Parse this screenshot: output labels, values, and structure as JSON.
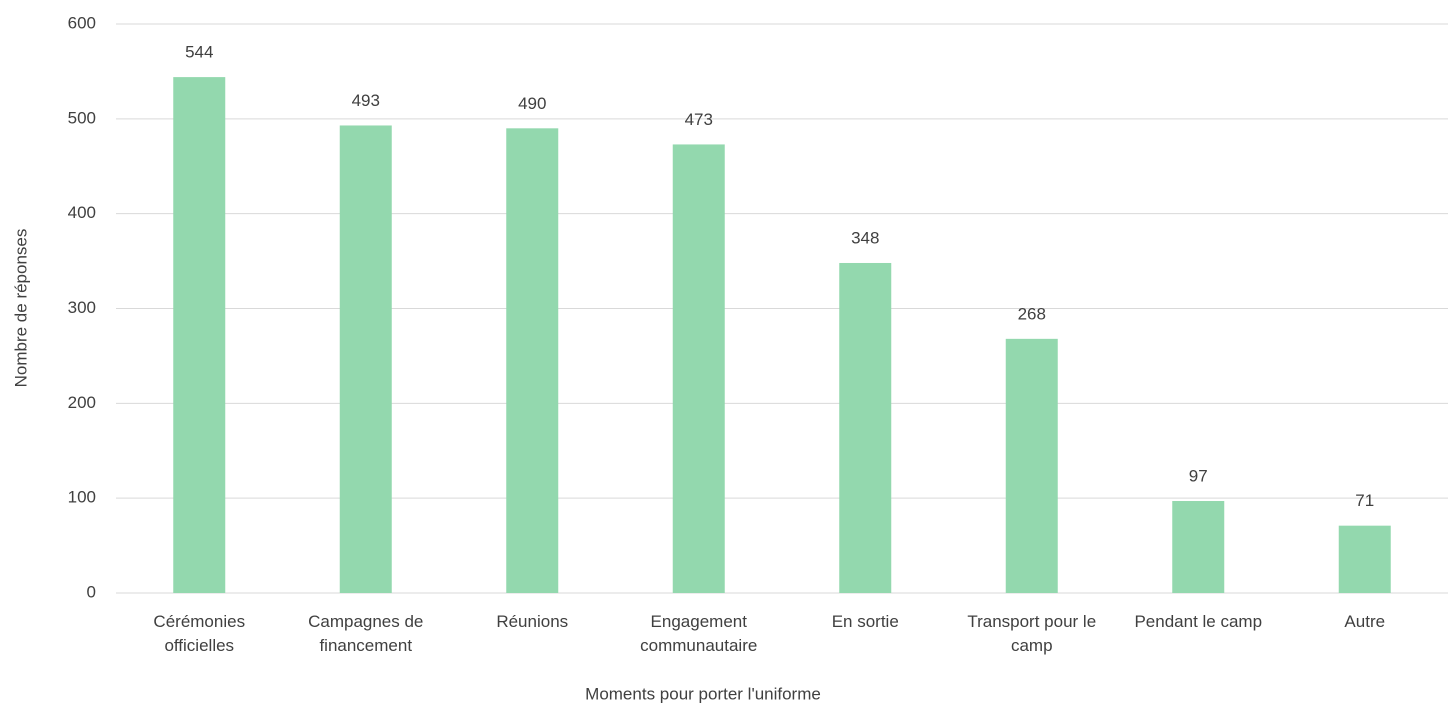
{
  "chart_data": {
    "type": "bar",
    "x_label": "Moments pour porter l'uniforme",
    "y_label": "Nombre de réponses",
    "categories": [
      "Cérémonies officielles",
      "Campagnes de financement",
      "Réunions",
      "Engagement communautaire",
      "En sortie",
      "Transport pour le camp",
      "Pendant le camp",
      "Autre"
    ],
    "values": [
      544,
      493,
      490,
      473,
      348,
      268,
      97,
      71
    ],
    "color": "#93d8ae",
    "ylim": [
      0,
      600
    ],
    "yticks": [
      0,
      100,
      200,
      300,
      400,
      500,
      600
    ],
    "grid": true
  }
}
